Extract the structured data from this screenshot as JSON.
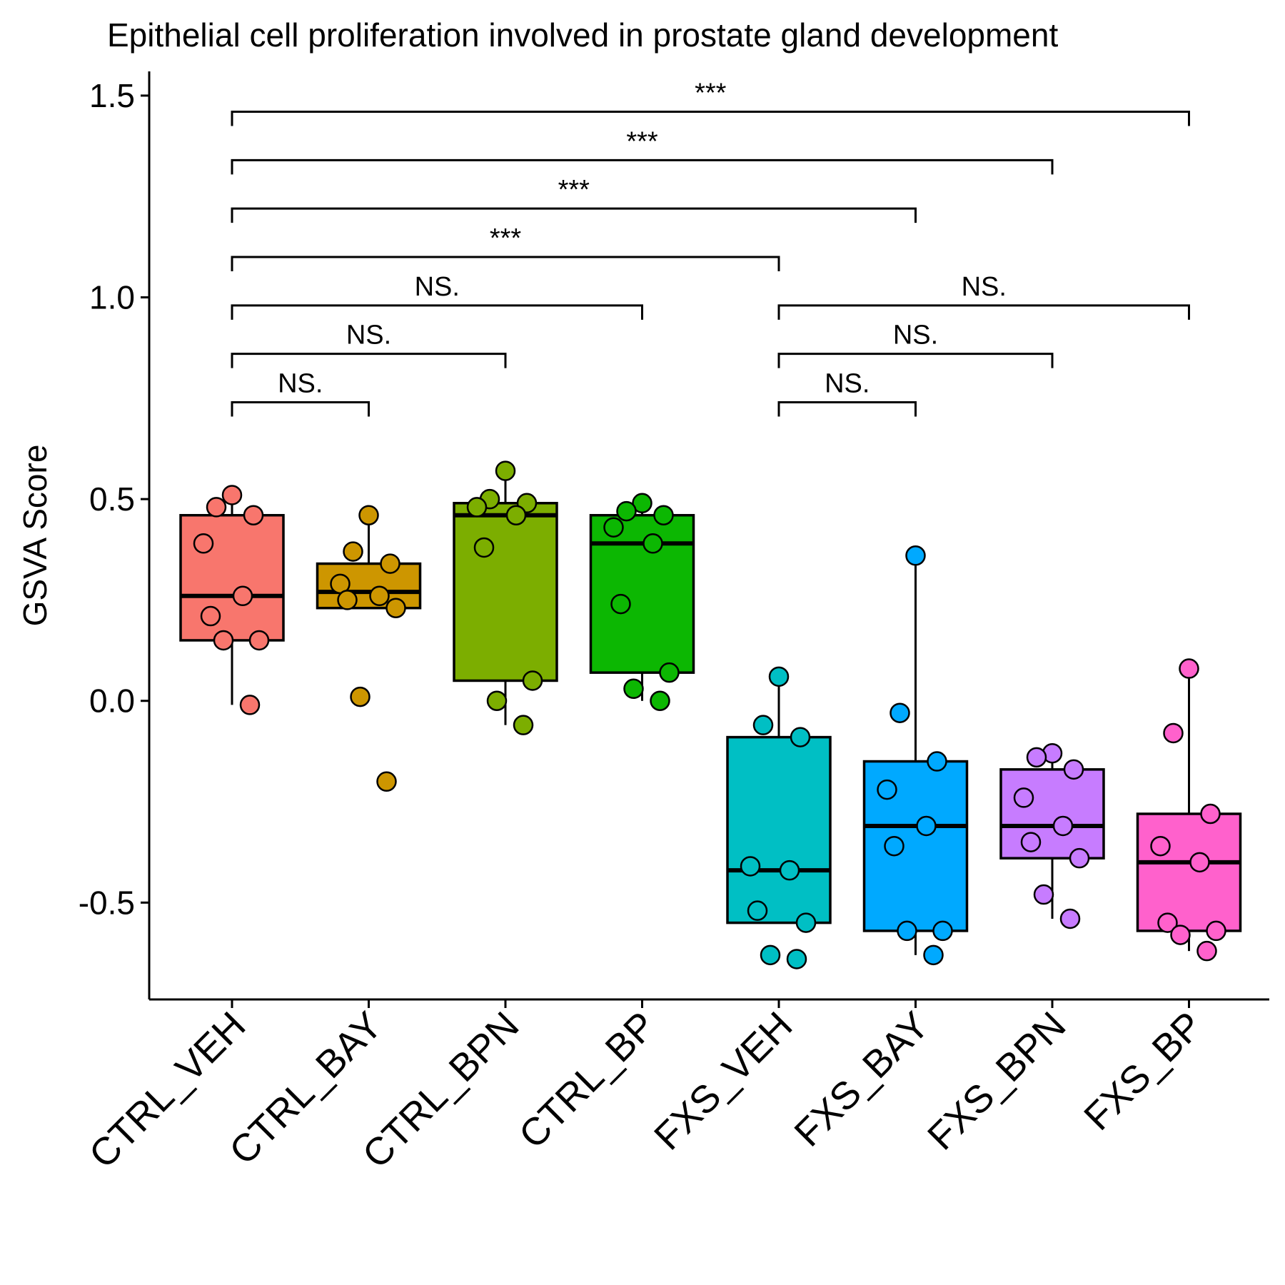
{
  "chart_data": {
    "type": "box",
    "title": "Epithelial cell proliferation involved in prostate gland development",
    "xlabel": "",
    "ylabel": "GSVA Score",
    "ylim": [
      -0.74,
      1.56
    ],
    "yticks": [
      -0.5,
      0.0,
      0.5,
      1.0,
      1.5
    ],
    "ytick_labels": [
      "-0.5",
      "0.0",
      "0.5",
      "1.0",
      "1.5"
    ],
    "grid": false,
    "legend": "none",
    "categories": [
      "CTRL_VEH",
      "CTRL_BAY",
      "CTRL_BPN",
      "CTRL_BP",
      "FXS_VEH",
      "FXS_BAY",
      "FXS_BPN",
      "FXS_BP"
    ],
    "groups": [
      {
        "name": "CTRL_VEH",
        "color": "#F8766D",
        "whisker_low": -0.01,
        "q1": 0.15,
        "median": 0.26,
        "q3": 0.46,
        "whisker_high": 0.51,
        "points": [
          0.51,
          0.48,
          0.46,
          0.39,
          0.26,
          0.21,
          0.15,
          0.15,
          -0.01
        ]
      },
      {
        "name": "CTRL_BAY",
        "color": "#CD9600",
        "whisker_low": 0.23,
        "q1": 0.23,
        "median": 0.27,
        "q3": 0.34,
        "whisker_high": 0.46,
        "points": [
          0.46,
          0.37,
          0.34,
          0.29,
          0.26,
          0.25,
          0.23,
          0.01,
          -0.2
        ]
      },
      {
        "name": "CTRL_BPN",
        "color": "#7CAE00",
        "whisker_low": -0.06,
        "q1": 0.05,
        "median": 0.46,
        "q3": 0.49,
        "whisker_high": 0.57,
        "points": [
          0.57,
          0.5,
          0.49,
          0.48,
          0.46,
          0.38,
          0.05,
          0.0,
          -0.06
        ]
      },
      {
        "name": "CTRL_BP",
        "color": "#0CB702",
        "whisker_low": 0.0,
        "q1": 0.07,
        "median": 0.39,
        "q3": 0.46,
        "whisker_high": 0.49,
        "points": [
          0.49,
          0.47,
          0.46,
          0.43,
          0.39,
          0.24,
          0.07,
          0.03,
          0.0
        ]
      },
      {
        "name": "FXS_VEH",
        "color": "#00BFC4",
        "whisker_low": -0.55,
        "q1": -0.55,
        "median": -0.42,
        "q3": -0.09,
        "whisker_high": 0.06,
        "points": [
          0.06,
          -0.06,
          -0.09,
          -0.41,
          -0.42,
          -0.52,
          -0.55,
          -0.63,
          -0.64
        ]
      },
      {
        "name": "FXS_BAY",
        "color": "#00A9FF",
        "whisker_low": -0.63,
        "q1": -0.57,
        "median": -0.31,
        "q3": -0.15,
        "whisker_high": 0.36,
        "points": [
          0.36,
          -0.03,
          -0.15,
          -0.22,
          -0.31,
          -0.36,
          -0.57,
          -0.57,
          -0.63
        ]
      },
      {
        "name": "FXS_BPN",
        "color": "#C77CFF",
        "whisker_low": -0.54,
        "q1": -0.39,
        "median": -0.31,
        "q3": -0.17,
        "whisker_high": -0.13,
        "points": [
          -0.13,
          -0.14,
          -0.17,
          -0.24,
          -0.31,
          -0.35,
          -0.39,
          -0.48,
          -0.54
        ]
      },
      {
        "name": "FXS_BP",
        "color": "#FF61CC",
        "whisker_low": -0.62,
        "q1": -0.57,
        "median": -0.4,
        "q3": -0.28,
        "whisker_high": 0.08,
        "points": [
          0.08,
          -0.08,
          -0.28,
          -0.36,
          -0.4,
          -0.55,
          -0.57,
          -0.58,
          -0.62
        ]
      }
    ],
    "comparisons": [
      {
        "from": 0,
        "to": 7,
        "y": 1.46,
        "label": "***"
      },
      {
        "from": 0,
        "to": 6,
        "y": 1.34,
        "label": "***"
      },
      {
        "from": 0,
        "to": 5,
        "y": 1.22,
        "label": "***"
      },
      {
        "from": 0,
        "to": 4,
        "y": 1.1,
        "label": "***"
      },
      {
        "from": 0,
        "to": 3,
        "y": 0.98,
        "label": "NS."
      },
      {
        "from": 0,
        "to": 2,
        "y": 0.86,
        "label": "NS."
      },
      {
        "from": 0,
        "to": 1,
        "y": 0.74,
        "label": "NS."
      },
      {
        "from": 4,
        "to": 7,
        "y": 0.98,
        "label": "NS."
      },
      {
        "from": 4,
        "to": 6,
        "y": 0.86,
        "label": "NS."
      },
      {
        "from": 4,
        "to": 5,
        "y": 0.74,
        "label": "NS."
      }
    ]
  }
}
